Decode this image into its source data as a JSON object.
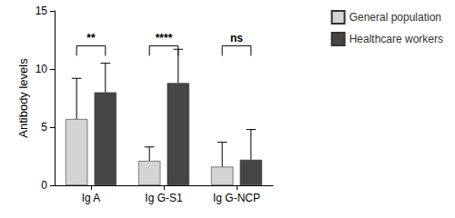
{
  "chart_data": {
    "type": "bar",
    "categories": [
      "Ig A",
      "Ig G-S1",
      "Ig G-NCP"
    ],
    "series": [
      {
        "name": "General population",
        "color": "#d4d4d4",
        "values": [
          5.7,
          2.1,
          1.6
        ],
        "errors": [
          3.5,
          1.2,
          2.1
        ]
      },
      {
        "name": "Healthcare workers",
        "color": "#464646",
        "values": [
          8.0,
          8.8,
          2.2
        ],
        "errors": [
          2.5,
          2.9,
          2.6
        ]
      }
    ],
    "y_label": "Antibody levels",
    "ylim": [
      0,
      15
    ],
    "yticks": [
      0,
      5,
      10,
      15
    ],
    "grid": false,
    "legend": "upper right",
    "significance": [
      {
        "label": "**",
        "y": 12
      },
      {
        "label": "****",
        "y": 12
      },
      {
        "label": "ns",
        "y": 12
      }
    ]
  }
}
